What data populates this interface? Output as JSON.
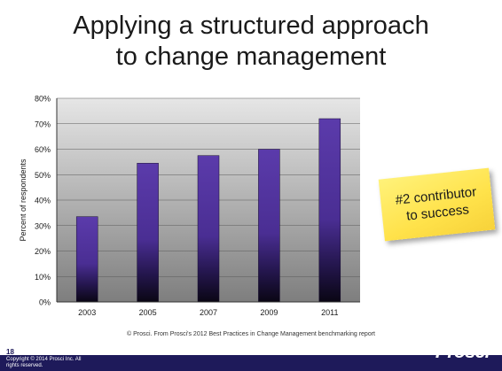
{
  "slide": {
    "title_line1": "Applying a structured approach",
    "title_line2": "to change management",
    "page_number": "18",
    "source_note": "© Prosci. From Prosci's 2012 Best Practices in Change Management benchmarking report",
    "copyright": "Copyright © 2014 Prosci Inc. All rights reserved.",
    "logo_text": "Prosci",
    "logo_mark": "®"
  },
  "callout": {
    "line1": "#2 contributor",
    "line2": "to success"
  },
  "colors": {
    "bar_top": "#5b3bab",
    "bar_bottom": "#0a0614",
    "plot_bg_top": "#e6e6e6",
    "plot_bg_bottom": "#7e7e7e",
    "footer": "#1e1a5a",
    "sticky_note": "#ffe24a"
  },
  "chart_data": {
    "type": "bar",
    "categories": [
      "2003",
      "2005",
      "2007",
      "2009",
      "2011"
    ],
    "values": [
      33.5,
      54.5,
      57.5,
      60,
      72
    ],
    "ylabel": "Percent of respondents",
    "xlabel": "",
    "ylim": [
      0,
      80
    ],
    "yticks": [
      0,
      10,
      20,
      30,
      40,
      50,
      60,
      70,
      80
    ],
    "ytick_labels": [
      "0%",
      "10%",
      "20%",
      "30%",
      "40%",
      "50%",
      "60%",
      "70%",
      "80%"
    ],
    "grid": true,
    "legend": "none"
  }
}
